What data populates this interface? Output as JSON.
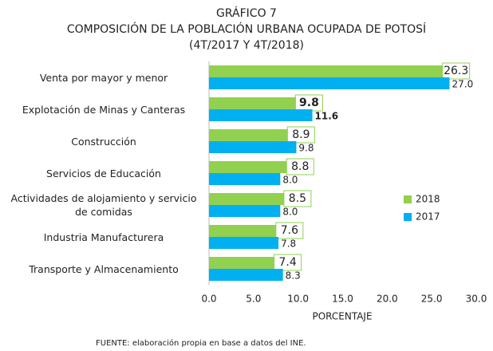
{
  "chart_data": {
    "type": "bar",
    "orientation": "horizontal",
    "title": "GRÁFICO 7",
    "subtitle": "COMPOSICIÓN DE LA POBLACIÓN URBANA OCUPADA DE POTOSÍ",
    "period": "(4T/2017 Y 4T/2018)",
    "xlabel": "PORCENTAJE",
    "source": "FUENTE: elaboración propia en base a datos del INE.",
    "categories": [
      "Venta por mayor y menor",
      "Explotación de Minas y Canteras",
      "Construcción",
      "Servicios de Educación",
      "Actividades de alojamiento y servicio de comidas",
      "Industria Manufacturera",
      "Transporte y Almacenamiento"
    ],
    "series": [
      {
        "name": "2018",
        "color": "#92d050",
        "values": [
          26.3,
          9.8,
          8.9,
          8.8,
          8.5,
          7.6,
          7.4
        ]
      },
      {
        "name": "2017",
        "color": "#00b0f0",
        "values": [
          27.0,
          11.6,
          9.8,
          8.0,
          8.0,
          7.8,
          8.3
        ],
        "value_labels": [
          "27.0",
          "11.6",
          "9.8",
          "8.0",
          "8.0",
          "7.8",
          "8.3"
        ]
      }
    ],
    "xlim": [
      0,
      30
    ],
    "xticks": [
      {
        "value": 0,
        "label": "0.0"
      },
      {
        "value": 5,
        "label": "5.0"
      },
      {
        "value": 10,
        "label": "10.0"
      },
      {
        "value": 15,
        "label": "15.0"
      },
      {
        "value": 20,
        "label": "20.0"
      },
      {
        "value": 25,
        "label": "25.0"
      },
      {
        "value": 30,
        "label": "30.0"
      }
    ],
    "legend": "right"
  }
}
